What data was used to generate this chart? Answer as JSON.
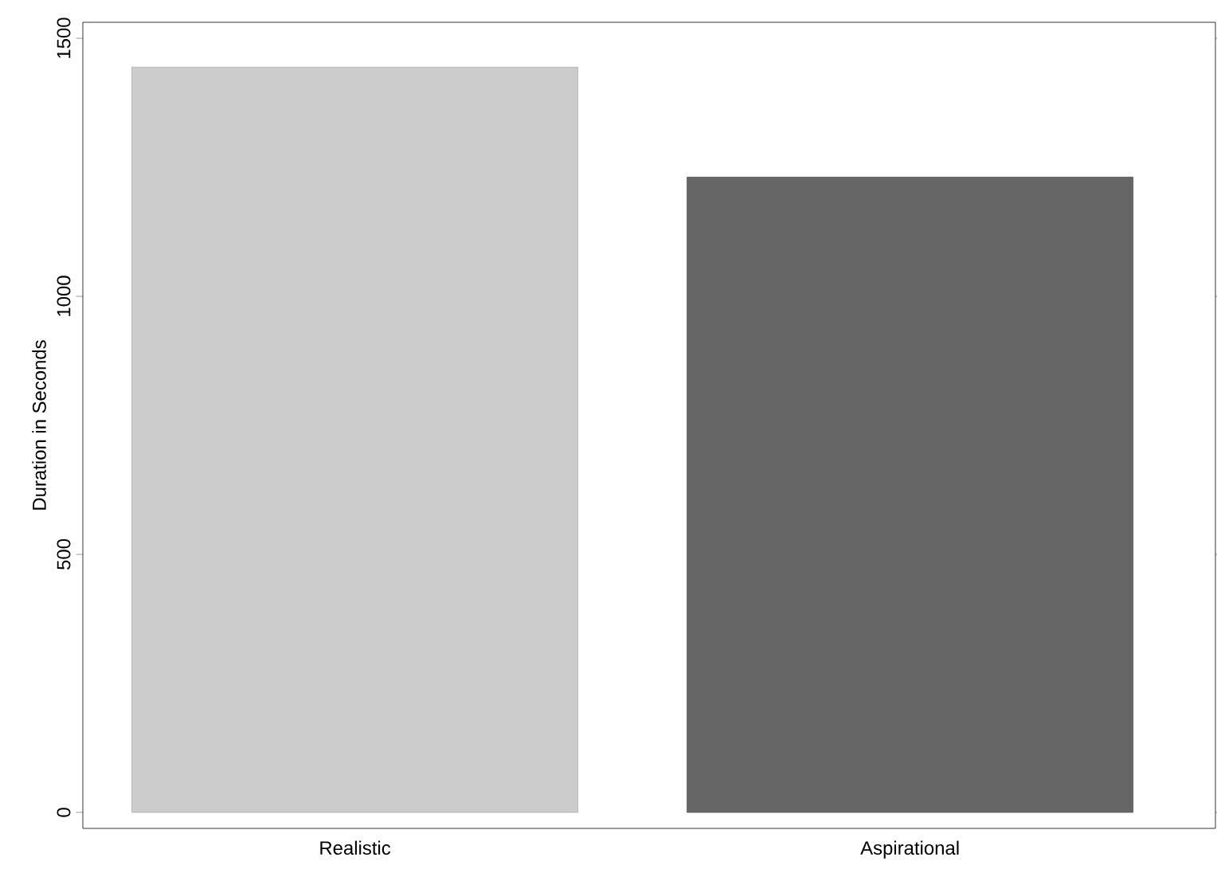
{
  "chart_data": {
    "type": "bar",
    "ylabel": "Duration in Seconds",
    "categories": [
      "Realistic",
      "Aspirational"
    ],
    "values": [
      1444,
      1231
    ],
    "colors": [
      "#cccccc",
      "#666666"
    ],
    "ylim": [
      -31,
      1531
    ],
    "yticks": [
      0,
      500,
      1000,
      1500
    ],
    "grid": false
  }
}
